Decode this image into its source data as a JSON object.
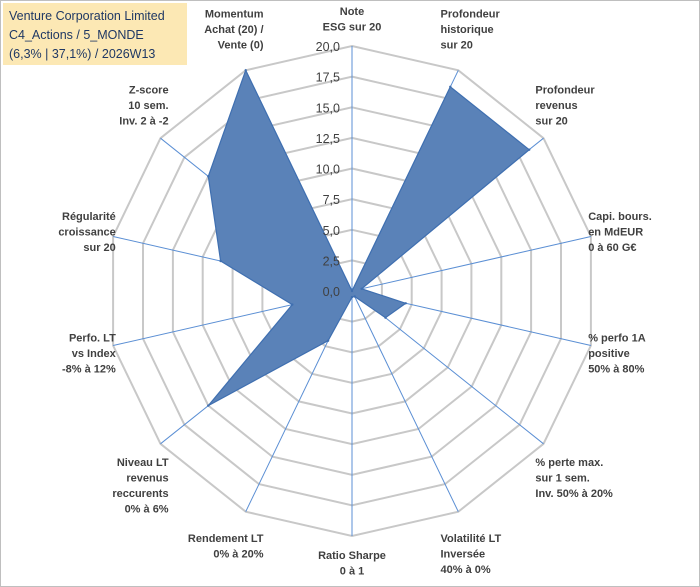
{
  "title_box": {
    "line1": "Venture Corporation Limited",
    "line2": "C4_Actions / 5_MONDE",
    "line3": "(6,3% | 37,1%) / 2026W13"
  },
  "colors": {
    "fill": "#5a82b8",
    "stroke": "#3f6fb0",
    "grid": "#c8c8c8",
    "spoke": "#5b8fd4",
    "title_bg": "#fce8b4",
    "title_text": "#1f3864"
  },
  "chart_data": {
    "type": "radar",
    "scale": {
      "min": 0,
      "max": 20,
      "step": 2.5
    },
    "tick_labels": [
      "0,0",
      "2,5",
      "5,0",
      "7,5",
      "10,0",
      "12,5",
      "15,0",
      "17,5",
      "20,0"
    ],
    "axes": [
      {
        "label": [
          "Note",
          "ESG sur 20"
        ],
        "value": 0
      },
      {
        "label": [
          "Profondeur",
          "historique",
          "sur 20"
        ],
        "value": 18.5
      },
      {
        "label": [
          "Profondeur",
          "revenus",
          "sur 20"
        ],
        "value": 18.5
      },
      {
        "label": [
          "Capi. bours.",
          "en MdEUR",
          "0 à 60 G€"
        ],
        "value": 0.8
      },
      {
        "label": [
          "% perfo 1A",
          "positive",
          "50% à 80%"
        ],
        "value": 4.5
      },
      {
        "label": [
          "% perte max.",
          "sur 1 sem.",
          "Inv. 50% à 20%"
        ],
        "value": 3.5
      },
      {
        "label": [
          "Volatilité LT",
          "Inversée",
          "40% à 0%"
        ],
        "value": 0.5
      },
      {
        "label": [
          "Ratio Sharpe",
          "0 à 1"
        ],
        "value": 0.5
      },
      {
        "label": [
          "Rendement LT",
          "0% à 20%"
        ],
        "value": 4.5
      },
      {
        "label": [
          "Niveau LT",
          "revenus",
          "reccurents",
          "0% à 6%"
        ],
        "value": 15.0
      },
      {
        "label": [
          "Perfo. LT",
          "vs Index",
          "-8% à 12%"
        ],
        "value": 5.0
      },
      {
        "label": [
          "Régularité",
          "croissance",
          "sur 20"
        ],
        "value": 11.0
      },
      {
        "label": [
          "Z-score",
          "10 sem.",
          "Inv. 2 à -2"
        ],
        "value": 15.0
      },
      {
        "label": [
          "Momentum",
          "Achat (20) /",
          "Vente (0)"
        ],
        "value": 20.0
      }
    ]
  }
}
